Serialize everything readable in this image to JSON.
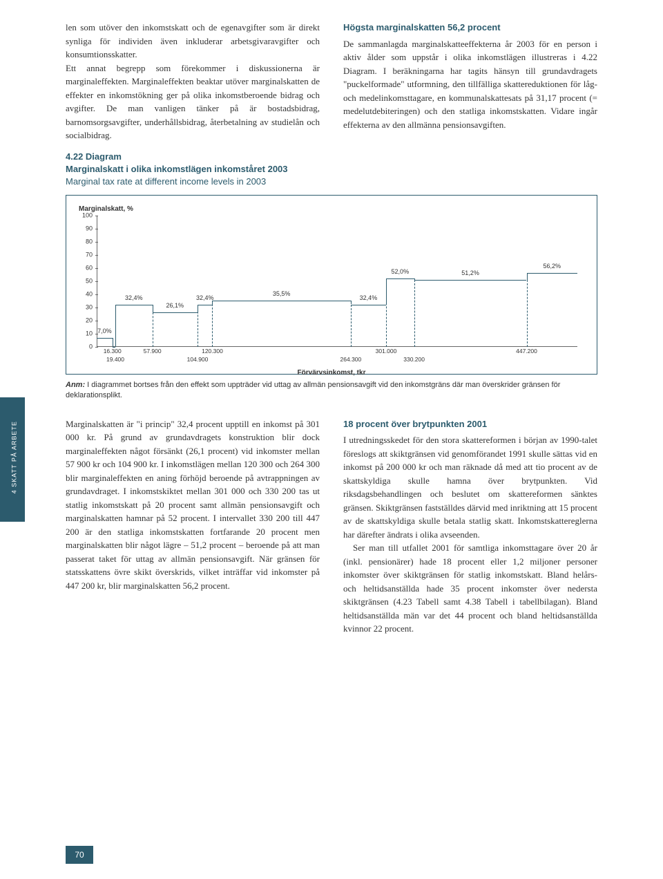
{
  "sidebar": {
    "label": "4  SKATT PÅ ARBETE"
  },
  "top": {
    "left_para": "len som utöver den inkomstskatt och de egenavgifter som är direkt synliga för individen även inkluderar arbetsgivaravgifter och konsumtionsskatter.\n  Ett annat begrepp som förekommer i diskussionerna är marginaleffekten. Marginaleffekten beaktar utöver marginalskatten de effekter en inkomstökning ger på olika inkomstberoende bidrag och avgifter. De man vanligen tänker på är bostadsbidrag, barnomsorgsavgifter, underhållsbidrag, återbetalning av studielån och socialbidrag.",
    "right_heading": "Högsta marginalskatten 56,2 procent",
    "right_para": "De sammanlagda marginalskatteeffekterna år 2003 för en person i aktiv ålder som uppstår i olika inkomstlägen illustreras i 4.22 Diagram. I beräkningarna har tagits hänsyn till grundavdragets \"puckelformade\" utformning, den tillfälliga skattereduktionen för låg- och medelinkomsttagare, en kommunalskattesats på 31,17 procent (= medelutdebiteringen) och den statliga inkomstskatten. Vidare ingår effekterna av den allmänna pensionsavgiften."
  },
  "diagram": {
    "number": "4.22 Diagram",
    "title_sv": "Marginalskatt i olika inkomstlägen inkomståret  2003",
    "title_en": "Marginal tax rate at different income levels in 2003",
    "y_label": "Marginalskatt, %",
    "x_label": "Förvärvsinkomst, tkr",
    "y_ticks": [
      0,
      10,
      20,
      30,
      40,
      50,
      60,
      70,
      80,
      90,
      100
    ],
    "x_breaks": [
      "16.300",
      "19.400",
      "57.900",
      "104.900",
      "120.300",
      "264.300",
      "301.000",
      "330.200",
      "447.200"
    ],
    "segments": [
      {
        "from": 0,
        "to": 16.3,
        "y": 7.0,
        "label": "7,0%"
      },
      {
        "from": 16.3,
        "to": 19.4,
        "y": 0,
        "label": ""
      },
      {
        "from": 19.4,
        "to": 57.9,
        "y": 32.4,
        "label": "32,4%"
      },
      {
        "from": 57.9,
        "to": 104.9,
        "y": 26.1,
        "label": "26,1%"
      },
      {
        "from": 104.9,
        "to": 120.3,
        "y": 32.4,
        "label": "32,4%"
      },
      {
        "from": 120.3,
        "to": 264.3,
        "y": 35.5,
        "label": "35,5%"
      },
      {
        "from": 264.3,
        "to": 301.0,
        "y": 32.4,
        "label": "32,4%"
      },
      {
        "from": 301.0,
        "to": 330.2,
        "y": 52.0,
        "label": "52,0%"
      },
      {
        "from": 330.2,
        "to": 447.2,
        "y": 51.2,
        "label": "51,2%"
      },
      {
        "from": 447.2,
        "to": 500.0,
        "y": 56.2,
        "label": "56,2%"
      }
    ],
    "x_max": 500,
    "y_max": 100,
    "line_color": "#2c5b6d",
    "border_color": "#2c5b6d"
  },
  "anm": {
    "prefix": "Anm:",
    "text": "I diagrammet bortses från den effekt som uppträder vid uttag av allmän pensionsavgift vid den inkomstgräns där man överskrider gränsen för deklarationsplikt."
  },
  "bottom": {
    "left_para": "Marginalskatten är \"i princip\" 32,4 procent upptill en inkomst på 301 000 kr. På grund av grundavdragets konstruktion blir dock marginaleffekten något försänkt (26,1 procent) vid inkomster mellan 57 900 kr och 104 900 kr. I inkomstlägen mellan 120 300 och 264 300 blir marginaleffekten en aning förhöjd beroende på avtrappningen av grundavdraget. I inkomstskiktet mellan 301 000 och 330 200 tas ut statlig inkomstskatt på 20 procent samt allmän pensionsavgift och marginalskatten hamnar på 52 procent. I intervallet 330 200 till 447 200 är den statliga inkomstskatten fortfarande 20 procent men marginalskatten blir något lägre – 51,2 procent – beroende på att man passerat taket för uttag av allmän pensionsavgift. När gränsen för statsskattens övre skikt överskrids, vilket inträffar vid inkomster på 447 200 kr, blir marginalskatten 56,2 procent.",
    "right_heading": "18 procent över brytpunkten 2001",
    "right_para1": "I utredningsskedet för den stora skattereformen i början av 1990-talet föreslogs att skiktgränsen vid genomförandet 1991 skulle sättas vid en inkomst på 200 000 kr och man räknade då med att tio procent av de skattskyldiga skulle hamna över brytpunkten. Vid riksdagsbehandlingen och beslutet om skattereformen sänktes gränsen. Skiktgränsen fastställdes därvid med inriktning att 15 procent av de skattskyldiga skulle betala statlig skatt.  Inkomstskattereglerna har därefter ändrats i olika avseenden.",
    "right_para2": "Ser man till utfallet 2001 för samtliga inkomsttagare över 20 år (inkl. pensionärer) hade 18 procent eller 1,2 miljoner personer inkomster över skiktgränsen för statlig inkomstskatt. Bland helårs- och heltidsanställda hade 35 procent inkomster över nedersta skiktgränsen (4.23 Tabell samt 4.38 Tabell i tabellbilagan). Bland heltidsanställda män var det 44 procent och bland heltidsanställda kvinnor 22 procent."
  },
  "page_number": "70"
}
